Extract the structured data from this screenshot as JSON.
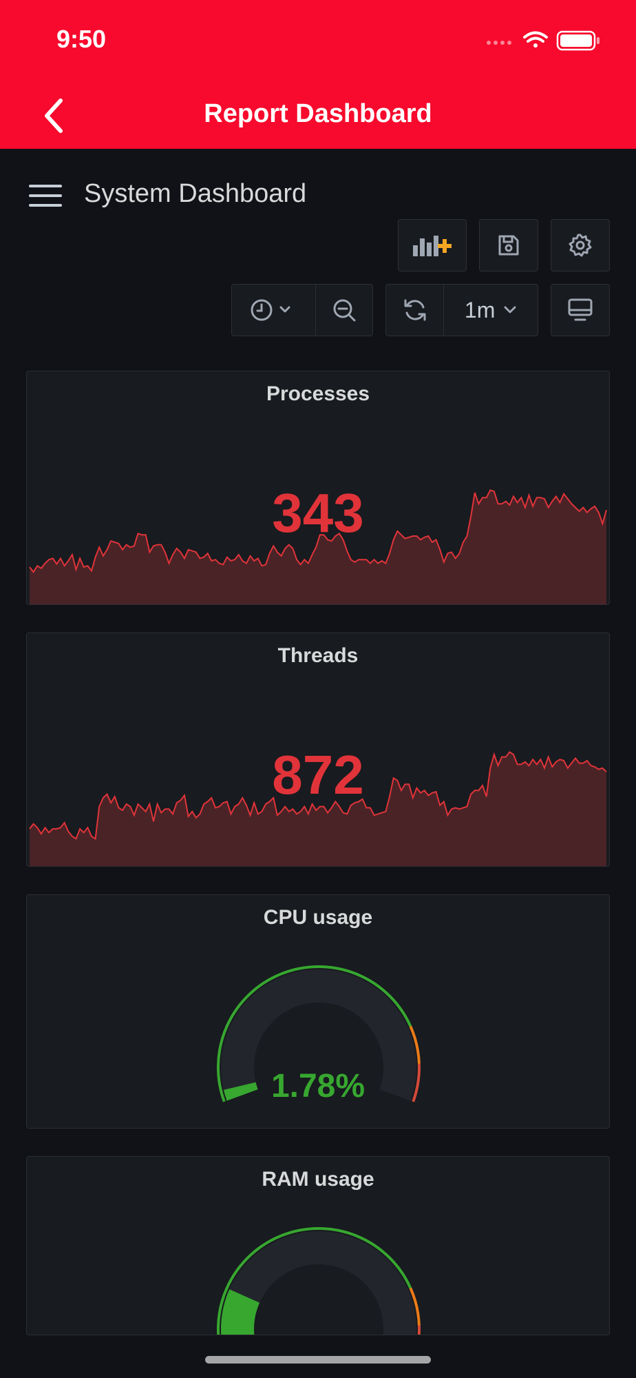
{
  "status_bar": {
    "time": "9:50"
  },
  "navbar": {
    "title": "Report Dashboard"
  },
  "dashboard": {
    "title": "System Dashboard"
  },
  "toolbar": {
    "refresh_interval": "1m"
  },
  "panels": [
    {
      "title": "Processes",
      "value": "343",
      "type": "stat",
      "sparkline": [
        60,
        52,
        62,
        58,
        66,
        72,
        74,
        65,
        74,
        62,
        70,
        80,
        56,
        74,
        60,
        62,
        54,
        76,
        92,
        78,
        88,
        102,
        100,
        98,
        88,
        96,
        92,
        94,
        114,
        112,
        112,
        84,
        94,
        96,
        96,
        84,
        66,
        80,
        90,
        84,
        74,
        88,
        86,
        84,
        74,
        76,
        82,
        70,
        72,
        66,
        64,
        76,
        70,
        72,
        80,
        70,
        66,
        78,
        70,
        74,
        62,
        64,
        82,
        94,
        84,
        78,
        90,
        96,
        90,
        72,
        64,
        72,
        66,
        80,
        92,
        112,
        112,
        104,
        102,
        110,
        114,
        104,
        86,
        72,
        68,
        72,
        72,
        72,
        66,
        72,
        66,
        70,
        66,
        82,
        104,
        118,
        112,
        106,
        108,
        110,
        110,
        104,
        108,
        110,
        100,
        104,
        88,
        68,
        82,
        84,
        74,
        82,
        100,
        110,
        142,
        180,
        162,
        172,
        172,
        184,
        182,
        162,
        162,
        166,
        160,
        174,
        164,
        172,
        156,
        176,
        158,
        172,
        172,
        170,
        156,
        166,
        174,
        164,
        178,
        170,
        162,
        156,
        150,
        156,
        148,
        154,
        158,
        148,
        130,
        152
      ]
    },
    {
      "title": "Threads",
      "value": "872",
      "type": "stat",
      "sparkline": [
        60,
        68,
        62,
        52,
        62,
        54,
        60,
        60,
        62,
        70,
        56,
        48,
        44,
        60,
        54,
        62,
        48,
        44,
        96,
        110,
        116,
        102,
        112,
        94,
        90,
        100,
        96,
        82,
        100,
        94,
        88,
        100,
        72,
        100,
        86,
        92,
        92,
        84,
        102,
        106,
        114,
        80,
        88,
        78,
        84,
        100,
        104,
        110,
        94,
        96,
        102,
        104,
        84,
        96,
        100,
        110,
        98,
        82,
        102,
        84,
        88,
        100,
        104,
        110,
        82,
        88,
        96,
        88,
        92,
        84,
        88,
        96,
        84,
        100,
        90,
        96,
        96,
        86,
        94,
        104,
        96,
        86,
        84,
        98,
        102,
        104,
        108,
        94,
        94,
        82,
        84,
        86,
        88,
        112,
        142,
        138,
        122,
        132,
        132,
        110,
        126,
        118,
        122,
        114,
        118,
        120,
        98,
        104,
        82,
        92,
        94,
        92,
        94,
        96,
        116,
        122,
        122,
        130,
        112,
        158,
        180,
        162,
        176,
        176,
        184,
        180,
        164,
        164,
        168,
        162,
        172,
        164,
        172,
        158,
        176,
        160,
        168,
        172,
        170,
        158,
        166,
        174,
        166,
        166,
        170,
        162,
        160,
        156,
        158,
        152
      ]
    },
    {
      "title": "CPU usage",
      "value": "1.78%",
      "type": "gauge",
      "percent": 1.78
    },
    {
      "title": "RAM usage",
      "type": "gauge",
      "percent": 20
    }
  ],
  "colors": {
    "header_red": "#F70A2D",
    "background": "#111217",
    "panel_bg": "#181B1F",
    "stat_red": "#E0343A",
    "gauge_green": "#37A730",
    "gauge_orange": "#EB7B18",
    "gauge_red": "#D44A3A"
  }
}
